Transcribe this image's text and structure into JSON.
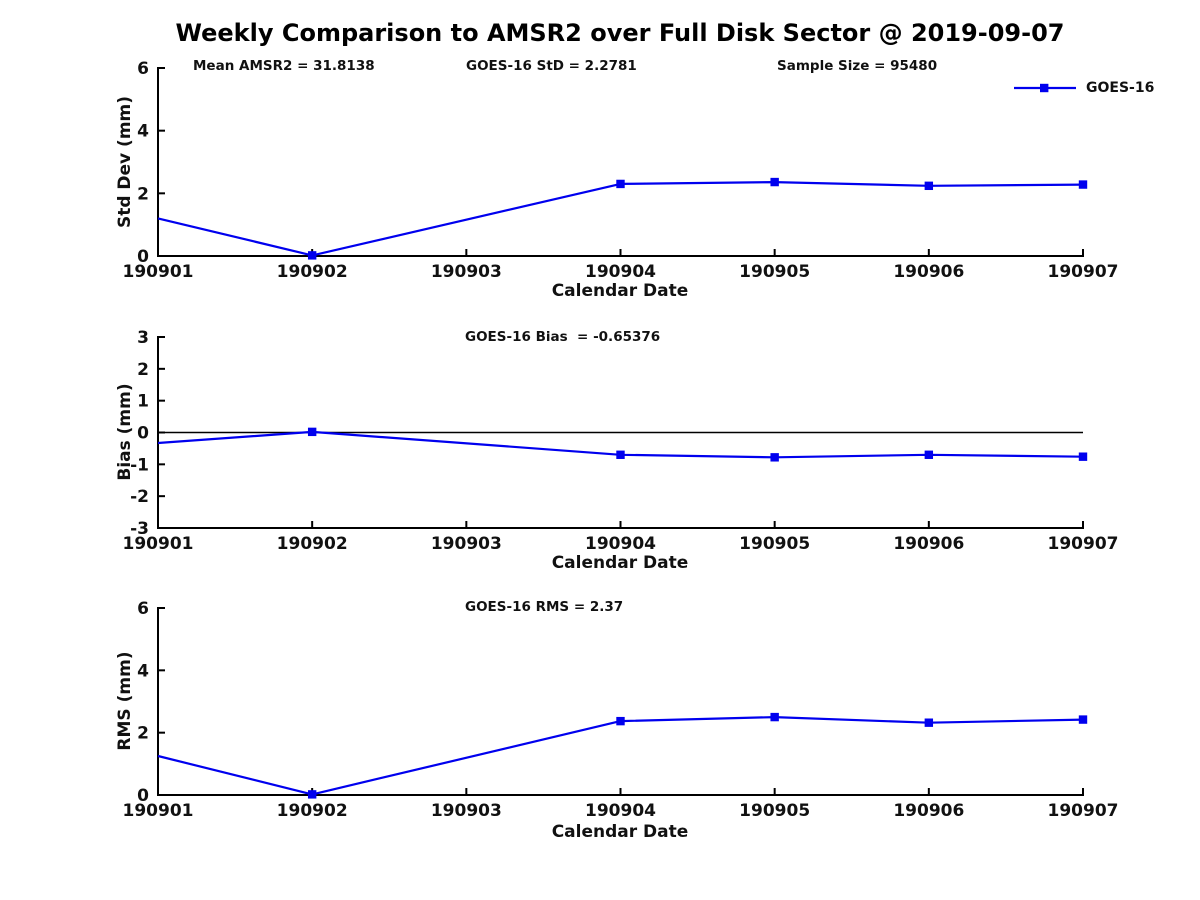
{
  "title": "Weekly Comparison to AMSR2 over Full Disk Sector @ 2019-09-07",
  "legend": {
    "label": "GOES-16"
  },
  "colors": {
    "series_line": "#0000EE",
    "axis": "#000000",
    "text": "#111111"
  },
  "chart_data": [
    {
      "type": "line",
      "name": "std-dev",
      "xlabel": "Calendar Date",
      "ylabel": "Std Dev (mm)",
      "categories": [
        "190901",
        "190902",
        "190903",
        "190904",
        "190905",
        "190906",
        "190907"
      ],
      "series": [
        {
          "name": "GOES-16",
          "values": [
            1.2,
            0.02,
            null,
            2.3,
            2.36,
            2.24,
            2.28
          ]
        }
      ],
      "marker_indices": [
        1,
        3,
        4,
        5,
        6
      ],
      "ylim": [
        0,
        6
      ],
      "yticks": [
        0,
        2,
        4,
        6
      ],
      "zero_line": false,
      "grid": false,
      "annotations": [
        {
          "text": "Mean AMSR2 = 31.8138"
        },
        {
          "text": "GOES-16 StD = 2.2781"
        },
        {
          "text": "Sample Size = 95480"
        }
      ]
    },
    {
      "type": "line",
      "name": "bias",
      "xlabel": "Calendar Date",
      "ylabel": "Bias (mm)",
      "categories": [
        "190901",
        "190902",
        "190903",
        "190904",
        "190905",
        "190906",
        "190907"
      ],
      "series": [
        {
          "name": "GOES-16",
          "values": [
            -0.33,
            0.02,
            null,
            -0.7,
            -0.78,
            -0.7,
            -0.76
          ]
        }
      ],
      "marker_indices": [
        1,
        3,
        4,
        5,
        6
      ],
      "ylim": [
        -3,
        3
      ],
      "yticks": [
        -3,
        -2,
        -1,
        0,
        1,
        2,
        3
      ],
      "zero_line": true,
      "grid": false,
      "annotations": [
        {
          "text": "GOES-16 Bias  = -0.65376"
        }
      ]
    },
    {
      "type": "line",
      "name": "rms",
      "xlabel": "Calendar Date",
      "ylabel": "RMS (mm)",
      "categories": [
        "190901",
        "190902",
        "190903",
        "190904",
        "190905",
        "190906",
        "190907"
      ],
      "series": [
        {
          "name": "GOES-16",
          "values": [
            1.25,
            0.02,
            null,
            2.37,
            2.5,
            2.32,
            2.42
          ]
        }
      ],
      "marker_indices": [
        1,
        3,
        4,
        5,
        6
      ],
      "ylim": [
        0,
        6
      ],
      "yticks": [
        0,
        2,
        4,
        6
      ],
      "zero_line": false,
      "grid": false,
      "annotations": [
        {
          "text": "GOES-16 RMS = 2.37"
        }
      ]
    }
  ]
}
